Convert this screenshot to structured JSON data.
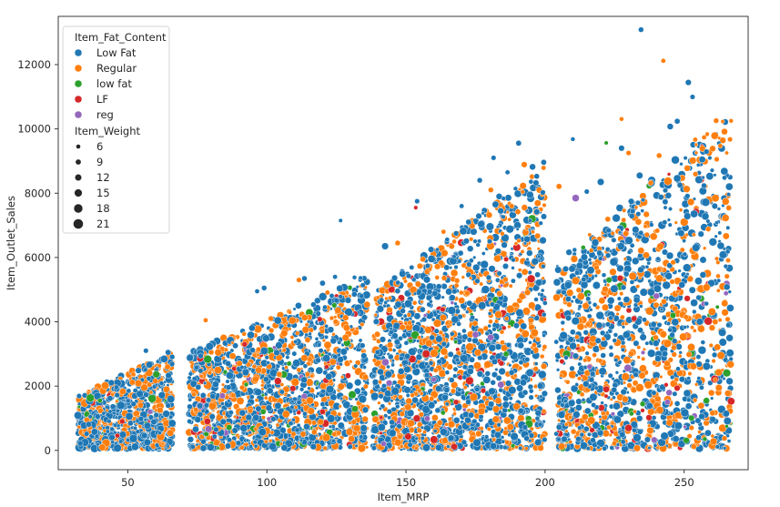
{
  "chart_data": {
    "type": "scatter",
    "title": "",
    "xlabel": "Item_MRP",
    "ylabel": "Item_Outlet_Sales",
    "xlim": [
      25,
      273
    ],
    "ylim": [
      -600,
      13500
    ],
    "xticks": [
      50,
      100,
      150,
      200,
      250
    ],
    "yticks": [
      0,
      2000,
      4000,
      6000,
      8000,
      10000,
      12000
    ],
    "grid": false,
    "legend_placement": "top-left",
    "hue": {
      "title": "Item_Fat_Content",
      "categories": [
        {
          "name": "Low Fat",
          "color": "#1f77b4"
        },
        {
          "name": "Regular",
          "color": "#ff7f0e"
        },
        {
          "name": "low fat",
          "color": "#2ca02c"
        },
        {
          "name": "LF",
          "color": "#d62728"
        },
        {
          "name": "reg",
          "color": "#9467bd"
        }
      ]
    },
    "size": {
      "title": "Item_Weight",
      "levels": [
        6,
        9,
        12,
        15,
        18,
        21
      ]
    },
    "mrp_clusters": [
      {
        "x_range": [
          32,
          66
        ],
        "y_max": 3000
      },
      {
        "x_range": [
          72,
          136
        ],
        "y_max": 5400
      },
      {
        "x_range": [
          138,
          200
        ],
        "y_max": 8800
      },
      {
        "x_range": [
          204,
          267
        ],
        "y_max": 10500
      }
    ],
    "points": [
      {
        "x": 234.5,
        "y": 13086,
        "hue": "Low Fat",
        "w": 12
      },
      {
        "x": 242.5,
        "y": 12117,
        "hue": "Regular",
        "w": 10
      },
      {
        "x": 251.5,
        "y": 11445,
        "hue": "Low Fat",
        "w": 14
      },
      {
        "x": 253.0,
        "y": 10994,
        "hue": "Low Fat",
        "w": 11
      },
      {
        "x": 227.5,
        "y": 10306,
        "hue": "Regular",
        "w": 9
      },
      {
        "x": 261.5,
        "y": 10256,
        "hue": "Regular",
        "w": 12
      },
      {
        "x": 245.0,
        "y": 10073,
        "hue": "Low Fat",
        "w": 15
      },
      {
        "x": 247.5,
        "y": 10237,
        "hue": "Low Fat",
        "w": 13
      },
      {
        "x": 254.0,
        "y": 9665,
        "hue": "Regular",
        "w": 10
      },
      {
        "x": 222.0,
        "y": 9565,
        "hue": "low fat",
        "w": 8
      },
      {
        "x": 190.5,
        "y": 9555,
        "hue": "Low Fat",
        "w": 13
      },
      {
        "x": 210.0,
        "y": 9680,
        "hue": "Low Fat",
        "w": 9
      },
      {
        "x": 256.5,
        "y": 9050,
        "hue": "Low Fat",
        "w": 16
      },
      {
        "x": 227.5,
        "y": 9400,
        "hue": "Low Fat",
        "w": 14
      },
      {
        "x": 230.0,
        "y": 9250,
        "hue": "Regular",
        "w": 11
      },
      {
        "x": 258.0,
        "y": 9290,
        "hue": "Low Fat",
        "w": 12
      },
      {
        "x": 263.0,
        "y": 9470,
        "hue": "Regular",
        "w": 10
      },
      {
        "x": 241.0,
        "y": 9170,
        "hue": "Regular",
        "w": 12
      },
      {
        "x": 199.5,
        "y": 8960,
        "hue": "Low Fat",
        "w": 13
      },
      {
        "x": 192.5,
        "y": 8890,
        "hue": "Regular",
        "w": 14
      },
      {
        "x": 195.5,
        "y": 8820,
        "hue": "Low Fat",
        "w": 15
      },
      {
        "x": 181.5,
        "y": 9100,
        "hue": "Low Fat",
        "w": 11
      },
      {
        "x": 186.5,
        "y": 8650,
        "hue": "Low Fat",
        "w": 10
      },
      {
        "x": 176.5,
        "y": 8400,
        "hue": "Low Fat",
        "w": 12
      },
      {
        "x": 211.0,
        "y": 7850,
        "hue": "reg",
        "w": 18
      },
      {
        "x": 220.0,
        "y": 8350,
        "hue": "Low Fat",
        "w": 17
      },
      {
        "x": 205.0,
        "y": 8210,
        "hue": "Regular",
        "w": 13
      },
      {
        "x": 215.0,
        "y": 8050,
        "hue": "Low Fat",
        "w": 11
      },
      {
        "x": 248.5,
        "y": 8250,
        "hue": "Low Fat",
        "w": 13
      },
      {
        "x": 264.5,
        "y": 8480,
        "hue": "Low Fat",
        "w": 10
      },
      {
        "x": 234.0,
        "y": 8550,
        "hue": "Low Fat",
        "w": 16
      },
      {
        "x": 238.0,
        "y": 8320,
        "hue": "Regular",
        "w": 12
      },
      {
        "x": 261.0,
        "y": 7600,
        "hue": "Low Fat",
        "w": 14
      },
      {
        "x": 126.5,
        "y": 7150,
        "hue": "Low Fat",
        "w": 8
      },
      {
        "x": 153.5,
        "y": 7550,
        "hue": "LF",
        "w": 8
      },
      {
        "x": 154.0,
        "y": 7750,
        "hue": "Low Fat",
        "w": 11
      },
      {
        "x": 170.0,
        "y": 7600,
        "hue": "Low Fat",
        "w": 10
      },
      {
        "x": 180.5,
        "y": 8100,
        "hue": "Regular",
        "w": 12
      },
      {
        "x": 183.5,
        "y": 7900,
        "hue": "Low Fat",
        "w": 15
      },
      {
        "x": 188.0,
        "y": 7600,
        "hue": "Regular",
        "w": 11
      },
      {
        "x": 172.5,
        "y": 7100,
        "hue": "Low Fat",
        "w": 13
      },
      {
        "x": 163.5,
        "y": 6800,
        "hue": "Regular",
        "w": 10
      },
      {
        "x": 147.0,
        "y": 6450,
        "hue": "Regular",
        "w": 12
      },
      {
        "x": 142.5,
        "y": 6350,
        "hue": "Low Fat",
        "w": 17
      },
      {
        "x": 159.0,
        "y": 6250,
        "hue": "Low Fat",
        "w": 14
      },
      {
        "x": 99.0,
        "y": 5050,
        "hue": "Low Fat",
        "w": 12
      },
      {
        "x": 96.5,
        "y": 4950,
        "hue": "Low Fat",
        "w": 10
      },
      {
        "x": 111.5,
        "y": 5300,
        "hue": "Regular",
        "w": 11
      },
      {
        "x": 113.5,
        "y": 5350,
        "hue": "Low Fat",
        "w": 12
      },
      {
        "x": 120.0,
        "y": 5200,
        "hue": "Low Fat",
        "w": 13
      },
      {
        "x": 124.5,
        "y": 5400,
        "hue": "Low Fat",
        "w": 10
      },
      {
        "x": 131.5,
        "y": 5380,
        "hue": "Low Fat",
        "w": 9
      },
      {
        "x": 134.0,
        "y": 4800,
        "hue": "Low Fat",
        "w": 11
      },
      {
        "x": 78.0,
        "y": 4050,
        "hue": "Regular",
        "w": 10
      },
      {
        "x": 56.5,
        "y": 3100,
        "hue": "Low Fat",
        "w": 11
      },
      {
        "x": 64.5,
        "y": 3050,
        "hue": "Low Fat",
        "w": 13
      },
      {
        "x": 223.0,
        "y": 5300,
        "hue": "low fat",
        "w": 14
      },
      {
        "x": 240.0,
        "y": 4800,
        "hue": "reg",
        "w": 15
      },
      {
        "x": 232.0,
        "y": 4100,
        "hue": "LF",
        "w": 13
      },
      {
        "x": 246.0,
        "y": 4200,
        "hue": "low fat",
        "w": 14
      },
      {
        "x": 216.0,
        "y": 2600,
        "hue": "reg",
        "w": 12
      },
      {
        "x": 222.0,
        "y": 1900,
        "hue": "LF",
        "w": 16
      },
      {
        "x": 230.0,
        "y": 700,
        "hue": "LF",
        "w": 18
      },
      {
        "x": 244.0,
        "y": 1500,
        "hue": "reg",
        "w": 13
      },
      {
        "x": 258.0,
        "y": 1550,
        "hue": "low fat",
        "w": 15
      },
      {
        "x": 175.0,
        "y": 3600,
        "hue": "reg",
        "w": 16
      },
      {
        "x": 168.0,
        "y": 1500,
        "hue": "LF",
        "w": 12
      },
      {
        "x": 186.0,
        "y": 3000,
        "hue": "low fat",
        "w": 13
      },
      {
        "x": 160.0,
        "y": 2200,
        "hue": "reg",
        "w": 11
      },
      {
        "x": 92.0,
        "y": 3300,
        "hue": "LF",
        "w": 12
      },
      {
        "x": 108.0,
        "y": 2700,
        "hue": "low fat",
        "w": 11
      },
      {
        "x": 84.0,
        "y": 1700,
        "hue": "reg",
        "w": 14
      },
      {
        "x": 120.0,
        "y": 1200,
        "hue": "LF",
        "w": 13
      },
      {
        "x": 40.0,
        "y": 1550,
        "hue": "low fat",
        "w": 10
      },
      {
        "x": 48.0,
        "y": 900,
        "hue": "LF",
        "w": 12
      },
      {
        "x": 58.0,
        "y": 1200,
        "hue": "reg",
        "w": 11
      }
    ]
  }
}
